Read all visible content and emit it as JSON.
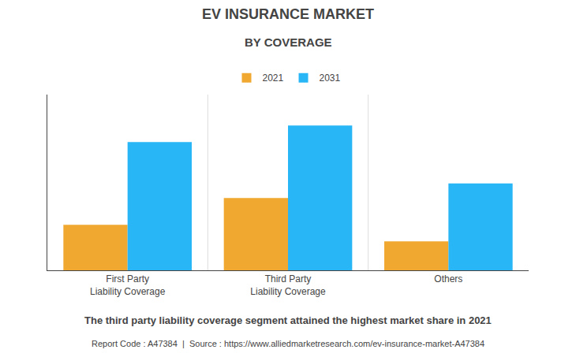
{
  "chart_data": {
    "type": "bar",
    "title": "EV INSURANCE MARKET",
    "subtitle": "BY COVERAGE",
    "categories": [
      "First Party\nLiability Coverage",
      "Third Party\nLiability Coverage",
      "Others"
    ],
    "series": [
      {
        "name": "2021",
        "color": "#F0A830",
        "values": [
          2.2,
          3.5,
          1.4
        ]
      },
      {
        "name": "2031",
        "color": "#29B6F6",
        "values": [
          6.2,
          7.0,
          4.2
        ]
      }
    ],
    "ylim": [
      0,
      8.5
    ],
    "yticks": [],
    "grid": false,
    "tick_labels": "x",
    "legend": "top",
    "annotations": [
      "The third party liability coverage segment attained the highest market share in 2021",
      "Report Code : A47384  |  Source : https://www.alliedmarketresearch.com/ev-insurance-market-A47384"
    ]
  }
}
